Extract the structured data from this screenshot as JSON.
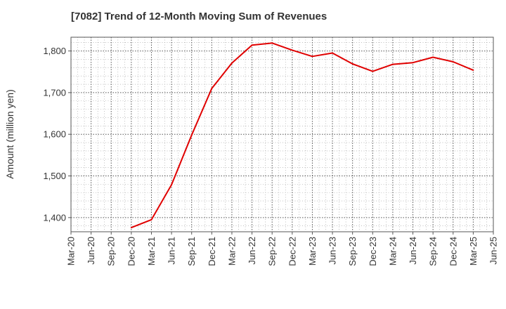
{
  "chart_data": {
    "type": "line",
    "title": "[7082]  Trend of 12-Month Moving Sum of Revenues",
    "xlabel": "",
    "ylabel": "Amount (million yen)",
    "x_ticks": [
      "Mar-20",
      "Jun-20",
      "Sep-20",
      "Dec-20",
      "Mar-21",
      "Jun-21",
      "Sep-21",
      "Dec-21",
      "Mar-22",
      "Jun-22",
      "Sep-22",
      "Dec-22",
      "Mar-23",
      "Jun-23",
      "Sep-23",
      "Dec-23",
      "Mar-24",
      "Jun-24",
      "Sep-24",
      "Dec-24",
      "Mar-25",
      "Jun-25"
    ],
    "y_ticks": [
      1400,
      1500,
      1600,
      1700,
      1800
    ],
    "y_tick_labels": [
      "1,400",
      "1,500",
      "1,600",
      "1,700",
      "1,800"
    ],
    "ylim": [
      1366,
      1833
    ],
    "grid": true,
    "series": [
      {
        "color": "#e00000",
        "x": [
          "Dec-20",
          "Mar-21",
          "Jun-21",
          "Sep-21",
          "Dec-21",
          "Mar-22",
          "Jun-22",
          "Sep-22",
          "Dec-22",
          "Mar-23",
          "Jun-23",
          "Sep-23",
          "Dec-23",
          "Mar-24",
          "Jun-24",
          "Sep-24",
          "Dec-24",
          "Mar-25"
        ],
        "values": [
          1376,
          1395,
          1479,
          1598,
          1710,
          1771,
          1814,
          1819,
          1802,
          1787,
          1795,
          1769,
          1751,
          1768,
          1772,
          1785,
          1774,
          1754
        ]
      }
    ]
  }
}
